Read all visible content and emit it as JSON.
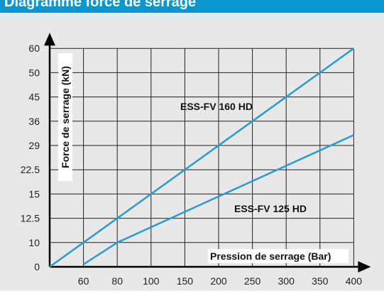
{
  "header": {
    "title": "Diagramme force de serrage"
  },
  "colors": {
    "header": "#0a96cf",
    "background": "#e8e8e8",
    "line": "#2a9bd0",
    "grid": "#222222"
  },
  "chart_data": {
    "type": "line",
    "xlabel": "Pression de serrage (Bar)",
    "ylabel": "Force de serrage (kN)",
    "x_ticks": [
      "60",
      "80",
      "100",
      "150",
      "200",
      "250",
      "300",
      "350",
      "400"
    ],
    "y_ticks": [
      "0",
      "10",
      "12.5",
      "15",
      "22.5",
      "29",
      "36",
      "45",
      "50",
      "60"
    ],
    "axis_scale": "categorical ticks, equally spaced",
    "grid": true,
    "series": [
      {
        "name": "ESS-FV 160 HD",
        "points": [
          [
            40,
            0
          ],
          [
            60,
            10
          ],
          [
            400,
            60
          ]
        ]
      },
      {
        "name": "ESS-FV 125 HD",
        "points": [
          [
            60,
            1
          ],
          [
            80,
            10
          ],
          [
            400,
            32
          ]
        ]
      }
    ]
  }
}
